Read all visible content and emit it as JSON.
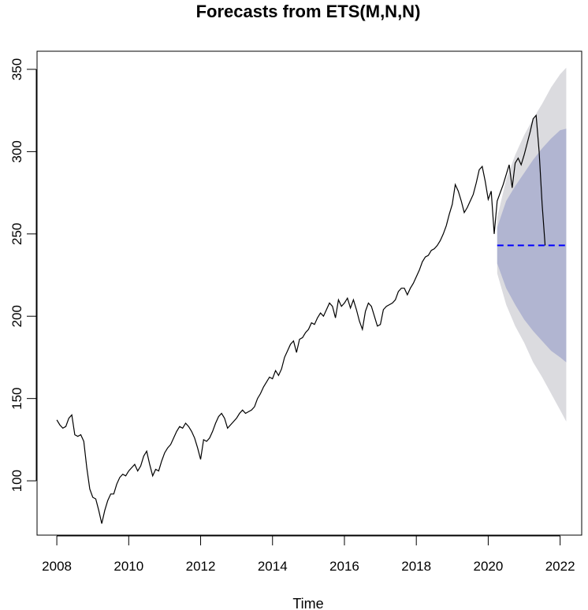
{
  "chart_data": {
    "type": "line",
    "title": "Forecasts from ETS(M,N,N)",
    "xlabel": "Time",
    "ylabel": "",
    "xlim": [
      2007.45,
      2022.6
    ],
    "ylim": [
      67,
      361
    ],
    "x_ticks": [
      2008,
      2010,
      2012,
      2014,
      2016,
      2018,
      2020,
      2022
    ],
    "y_ticks": [
      100,
      150,
      200,
      250,
      300,
      350
    ],
    "x_tick_labels": [
      "2008",
      "2010",
      "2012",
      "2014",
      "2016",
      "2018",
      "2020",
      "2022"
    ],
    "y_tick_labels": [
      "100",
      "150",
      "200",
      "250",
      "300",
      "350"
    ],
    "grid": false,
    "series": [
      {
        "role": "observed",
        "color": "#000000",
        "start": 2008.0,
        "frequency": 12,
        "values": [
          137,
          134,
          132,
          133,
          138,
          140,
          128,
          127,
          128,
          124,
          108,
          95,
          90,
          89,
          82,
          74,
          82,
          88,
          92,
          92,
          98,
          102,
          104,
          103,
          106,
          108,
          110,
          106,
          109,
          115,
          118,
          110,
          103,
          107,
          106,
          112,
          117,
          120,
          122,
          126,
          130,
          133,
          132,
          135,
          133,
          130,
          126,
          120,
          113,
          125,
          124,
          126,
          130,
          135,
          139,
          141,
          138,
          132,
          134,
          136,
          138,
          141,
          143,
          141,
          142,
          143,
          145,
          150,
          153,
          157,
          160,
          163,
          162,
          167,
          164,
          168,
          175,
          179,
          183,
          185,
          178,
          186,
          187,
          190,
          192,
          196,
          195,
          199,
          202,
          200,
          204,
          208,
          206,
          199,
          210,
          206,
          208,
          211,
          205,
          210,
          204,
          197,
          192,
          203,
          208,
          206,
          200,
          194,
          195,
          204,
          206,
          207,
          208,
          210,
          215,
          217,
          217,
          213,
          217,
          220,
          224,
          228,
          233,
          236,
          237,
          240,
          241,
          243,
          246,
          250,
          255,
          262,
          268,
          280,
          276,
          270,
          263,
          266,
          270,
          274,
          281,
          289,
          291,
          282,
          271,
          276,
          250,
          270,
          275,
          280,
          286,
          292,
          278,
          293,
          296,
          292,
          298,
          305,
          312,
          320,
          322,
          300,
          268,
          243
        ]
      },
      {
        "role": "point-forecast",
        "color": "#0000ff",
        "style": "dashed",
        "start": 2020.25,
        "end": 2022.17,
        "value": 243
      }
    ],
    "intervals": [
      {
        "level": 95,
        "color": "#dbdbdf",
        "x": [
          2020.25,
          2020.5,
          2020.75,
          2021.0,
          2021.25,
          2021.5,
          2021.75,
          2022.0,
          2022.17
        ],
        "lower": [
          226,
          207,
          194,
          184,
          172,
          163,
          153,
          143,
          136
        ],
        "upper": [
          260,
          283,
          298,
          310,
          320,
          329,
          339,
          347,
          351
        ]
      },
      {
        "level": 80,
        "color": "#b1b5d1",
        "x": [
          2020.25,
          2020.5,
          2020.75,
          2021.0,
          2021.25,
          2021.5,
          2021.75,
          2022.0,
          2022.17
        ],
        "lower": [
          232,
          217,
          207,
          198,
          191,
          185,
          179,
          175,
          172
        ],
        "upper": [
          254,
          270,
          279,
          287,
          295,
          302,
          308,
          313,
          314
        ]
      }
    ]
  }
}
